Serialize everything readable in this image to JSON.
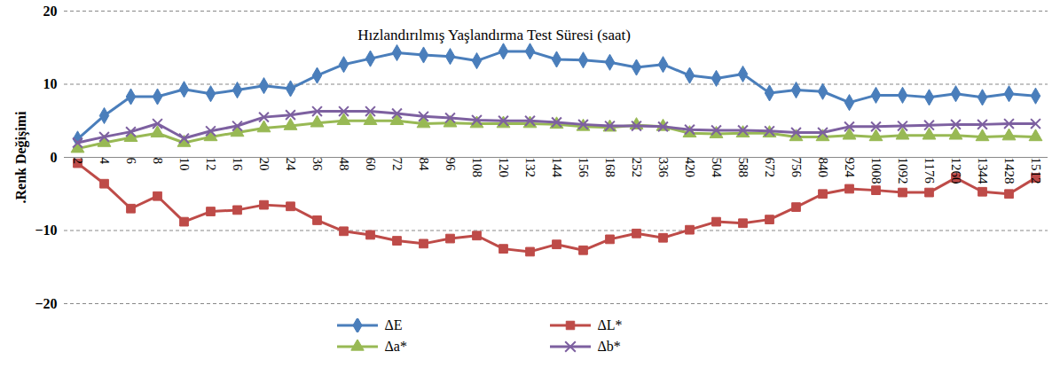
{
  "chart_data": {
    "type": "line",
    "title": "Hızlandırılmış Yaşlandırma Test Süresi (saat)",
    "ylabel": ".Renk Değişimi",
    "categories": [
      "2",
      "4",
      "6",
      "8",
      "10",
      "12",
      "16",
      "20",
      "24",
      "36",
      "48",
      "60",
      "72",
      "84",
      "96",
      "108",
      "120",
      "132",
      "144",
      "156",
      "168",
      "252",
      "336",
      "420",
      "504",
      "588",
      "672",
      "756",
      "840",
      "924",
      "1008",
      "1092",
      "1176",
      "1260",
      "1344",
      "1428",
      "1512"
    ],
    "series": [
      {
        "name": "ΔE",
        "color": "#4a7ebb",
        "marker": "diamond",
        "values": [
          2.5,
          5.7,
          8.3,
          8.3,
          9.3,
          8.7,
          9.2,
          9.8,
          9.4,
          11.2,
          12.7,
          13.5,
          14.3,
          14.0,
          13.8,
          13.2,
          14.5,
          14.5,
          13.4,
          13.3,
          13.0,
          12.3,
          12.7,
          11.2,
          10.8,
          11.4,
          8.8,
          9.2,
          9.0,
          7.5,
          8.5,
          8.5,
          8.2,
          8.7,
          8.2,
          8.7,
          8.4
        ]
      },
      {
        "name": "ΔL*",
        "color": "#be4b48",
        "marker": "square",
        "values": [
          -0.8,
          -3.6,
          -7.0,
          -5.3,
          -8.8,
          -7.4,
          -7.2,
          -6.5,
          -6.7,
          -8.6,
          -10.1,
          -10.6,
          -11.4,
          -11.8,
          -11.1,
          -10.7,
          -12.5,
          -12.9,
          -11.9,
          -12.7,
          -11.2,
          -10.4,
          -11.0,
          -9.9,
          -8.8,
          -9.0,
          -8.5,
          -6.8,
          -5.0,
          -4.3,
          -4.5,
          -4.8,
          -4.8,
          -2.8,
          -4.7,
          -5.0,
          -2.8
        ]
      },
      {
        "name": "Δa*",
        "color": "#98b954",
        "marker": "triangle",
        "values": [
          1.2,
          2.0,
          2.7,
          3.3,
          2.0,
          2.8,
          3.4,
          4.0,
          4.3,
          4.7,
          5.0,
          5.0,
          5.0,
          4.6,
          4.7,
          4.6,
          4.6,
          4.6,
          4.5,
          4.2,
          4.1,
          4.4,
          4.2,
          3.3,
          3.2,
          3.3,
          3.3,
          2.8,
          2.8,
          3.0,
          2.8,
          3.0,
          3.0,
          3.0,
          2.8,
          2.9,
          2.8
        ]
      },
      {
        "name": "Δb*",
        "color": "#7d60a0",
        "marker": "times",
        "values": [
          2.0,
          2.8,
          3.5,
          4.6,
          2.6,
          3.6,
          4.3,
          5.5,
          5.8,
          6.3,
          6.3,
          6.3,
          6.0,
          5.6,
          5.4,
          5.1,
          5.0,
          5.0,
          4.8,
          4.5,
          4.3,
          4.3,
          4.2,
          3.8,
          3.7,
          3.7,
          3.6,
          3.4,
          3.4,
          4.2,
          4.2,
          4.3,
          4.4,
          4.5,
          4.5,
          4.6,
          4.6
        ]
      }
    ],
    "ylim": [
      -20,
      20
    ],
    "yticks": [
      -20,
      -10,
      0,
      10,
      20
    ],
    "grid": true,
    "legend": "bottom"
  }
}
